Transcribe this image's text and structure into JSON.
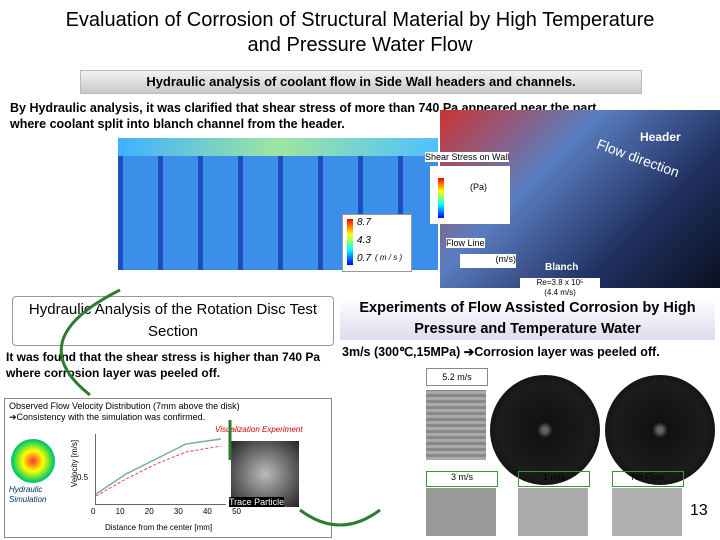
{
  "header": {
    "title": "Evaluation of Corrosion of Structural Material by High Temperature and Pressure Water Flow",
    "banner": "Hydraulic analysis of coolant flow in Side Wall headers and channels."
  },
  "intro": "By Hydraulic analysis, it was clarified that shear stress of more than 740 Pa appeared near the part where coolant split into blanch channel from the header.",
  "simulation": {
    "velocity_scale": [
      "8.7",
      "4.3",
      "0.7"
    ],
    "velocity_unit": "( m / s )",
    "header_label": "Header",
    "flow_label": "Flow direction",
    "shear_label": "Shear Stress on Wall",
    "shear_unit": "(Pa)",
    "flow_line_label": "Flow Line",
    "flow_line_unit": "(m/s)",
    "blanch_label": "Blanch",
    "reynolds": "Re=3.8 x 10⁵",
    "reynolds_speed": "(4.4 m/s)"
  },
  "left": {
    "heading": "Hydraulic Analysis of the Rotation Disc Test Section",
    "finding": "It was found that the shear stress is higher than 740 Pa where corrosion layer was peeled off.",
    "observed": "Observed Flow Velocity Distribution (7mm above the disk)",
    "consistency": "➔Consistency with the simulation was confirmed.",
    "visualization": "Visualization Experiment",
    "y_label": "Velocity [m/s]",
    "y_tick": "0.5",
    "x_label": "Distance from the center [mm]",
    "x_ticks": [
      "0",
      "10",
      "20",
      "30",
      "40",
      "50"
    ],
    "trace": "Trace Particle",
    "hydraulic": "Hydraulic Simulation"
  },
  "right": {
    "heading": "Experiments of Flow Assisted Corrosion by High Pressure and Temperature Water",
    "result": "3m/s (300℃,15MPa) ➔Corrosion layer was peeled off.",
    "speeds": [
      "5.2 m/s",
      "3 m/s",
      "1 m/s",
      "No Flow"
    ]
  },
  "page_number": "13"
}
